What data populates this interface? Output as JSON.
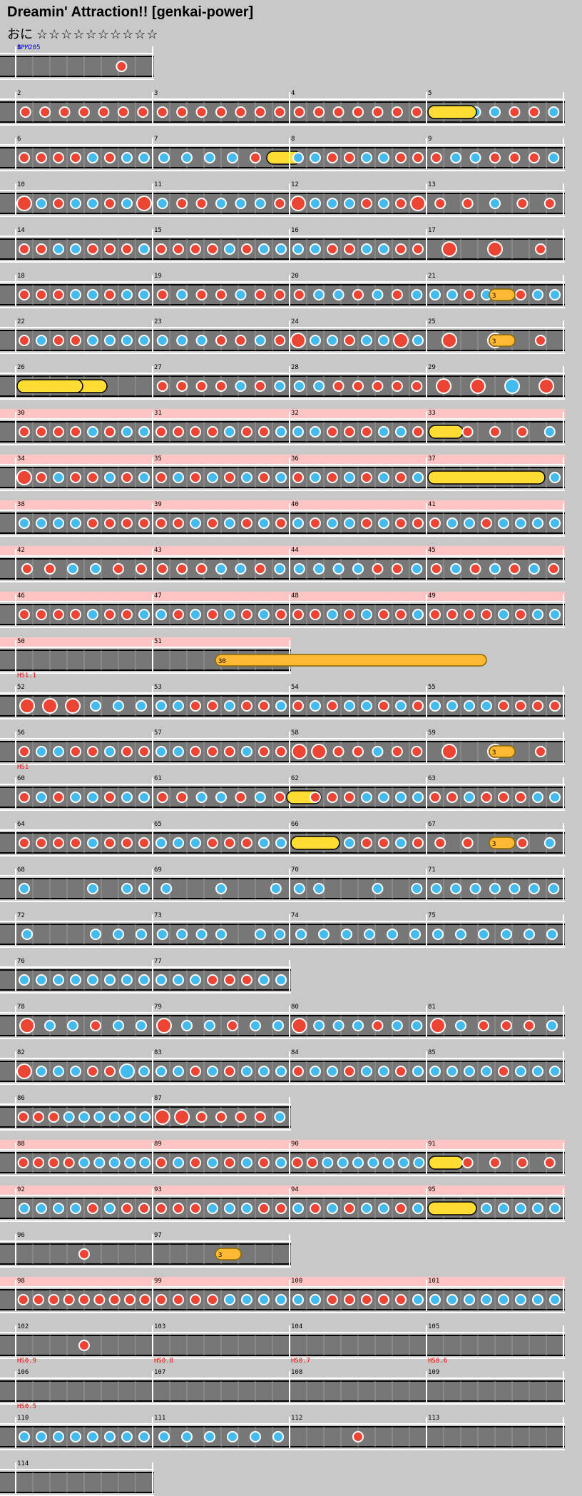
{
  "title": "Dreamin' Attraction!! [genkai-power]",
  "course": {
    "label": "おに",
    "stars": "☆☆☆☆☆☆☆☆☆☆"
  },
  "bpm_label": "BPM205",
  "colors": {
    "don": "#ee4433",
    "ka": "#44bbee",
    "roll": "#ffdd33",
    "balloon": "#ffb833",
    "gogo": "#ffc4c4",
    "lane": "#777777",
    "speed": "#ee0000",
    "bpm": "#0000ee"
  },
  "rows": [
    {
      "measures": [
        "1"
      ],
      "patterns": [
        "--------d--"
      ]
    },
    {
      "measures": [
        "2",
        "3",
        "4",
        "5"
      ],
      "patterns": [
        "ddddddd",
        "ddddddd",
        "ddddddd",
        "ddkkddk"
      ]
    },
    {
      "measures": [
        "6",
        "7",
        "8",
        "9"
      ],
      "patterns": [
        "ddddkdkk",
        "kkkkdr",
        "kkddkkdd",
        "dkkdddk"
      ]
    },
    {
      "measures": [
        "10",
        "11",
        "12",
        "13"
      ],
      "patterns": [
        "DkdkkdkD",
        "kddkkkd",
        "DkkkdkdD",
        "ddkdd"
      ]
    },
    {
      "measures": [
        "14",
        "15",
        "16",
        "17"
      ],
      "patterns": [
        "ddkkdddk",
        "ddddkdkk",
        "kkddkkdd",
        "DDd"
      ]
    },
    {
      "measures": [
        "18",
        "19",
        "20",
        "21"
      ],
      "patterns": [
        "dddkkdkk",
        "dkddkdd",
        "dkkdkdk",
        "kkdkddkk"
      ]
    },
    {
      "measures": [
        "22",
        "23",
        "24",
        "25"
      ],
      "patterns": [
        "dkddkkkk",
        "kkkddkd",
        "DkkdkkDk",
        "DDd"
      ]
    },
    {
      "measures": [
        "26",
        "27",
        "28",
        "29"
      ],
      "patterns": [
        "r",
        "ddddkdk",
        "kkddddd",
        "DDKD"
      ]
    },
    {
      "measures": [
        "30",
        "31",
        "32",
        "33"
      ],
      "patterns": [
        "ddddkdkk",
        "ddddkddk",
        "kkdddkkd",
        "rdddk"
      ]
    },
    {
      "measures": [
        "34",
        "35",
        "36",
        "37"
      ],
      "patterns": [
        "Ddkddkdk",
        "dkdkdkdk",
        "dkdkdkdk",
        "ddddkddk"
      ]
    },
    {
      "measures": [
        "38",
        "39",
        "40",
        "41"
      ],
      "patterns": [
        "kkkkdddd",
        "ddkdkdkd",
        "kdkkdkdd",
        "dkkdkkkk"
      ]
    },
    {
      "measures": [
        "42",
        "43",
        "44",
        "45"
      ],
      "patterns": [
        "ddkkdd",
        "dddkkdk",
        "kkkkddk",
        "dkdkdkd"
      ]
    },
    {
      "measures": [
        "46",
        "47",
        "48",
        "49"
      ],
      "patterns": [
        "ddddkddk",
        "kdkdkdkd",
        "ddkdkddk",
        "ddddkdkk"
      ]
    },
    {
      "measures": [
        "50",
        "51"
      ],
      "patterns": [
        "",
        ""
      ]
    },
    {
      "measures": [
        "52",
        "53",
        "54",
        "55"
      ],
      "patterns": [
        "DDDkkk",
        "kkddkddk",
        "dkdkkdkd",
        "kkkkdddd"
      ]
    },
    {
      "measures": [
        "56",
        "57",
        "58",
        "59"
      ],
      "patterns": [
        "dkkddkdd",
        "kkdddkdd",
        "DDddkdd",
        "DDd"
      ]
    },
    {
      "measures": [
        "60",
        "61",
        "62",
        "63"
      ],
      "patterns": [
        "dkdkkdkk",
        "ddkkdkd",
        "rdddkkkk",
        "ddkdddkk"
      ]
    },
    {
      "measures": [
        "64",
        "65",
        "66",
        "67"
      ],
      "patterns": [
        "ddddkddd",
        "kkkdddkk",
        "kdkkddkd",
        "ddddk"
      ]
    },
    {
      "measures": [
        "68",
        "69",
        "70",
        "71"
      ],
      "patterns": [
        "k---k-kk",
        "k-k-k",
        "kk--k-k",
        "kkkkkkk"
      ]
    },
    {
      "measures": [
        "72",
        "73",
        "74",
        "75"
      ],
      "patterns": [
        "k--kkk",
        "kkkk-kk",
        "kkkkkk",
        "kkkkkk"
      ]
    },
    {
      "measures": [
        "76",
        "77"
      ],
      "patterns": [
        "kkkkkkkk",
        "kkkdddkk"
      ]
    },
    {
      "measures": [
        "78",
        "79",
        "80",
        "81"
      ],
      "patterns": [
        "Dkkdkk",
        "Dkkdkk",
        "Dkkkdkk",
        "Dkdddk"
      ]
    },
    {
      "measures": [
        "82",
        "83",
        "84",
        "85"
      ],
      "patterns": [
        "DkkkddKk",
        "kkdkdkkk",
        "dkkdkkdk",
        "kkkkdkkk"
      ]
    },
    {
      "measures": [
        "86",
        "87"
      ],
      "patterns": [
        "dddkkkkkk",
        "DDddddk"
      ]
    },
    {
      "measures": [
        "88",
        "89",
        "90",
        "91"
      ],
      "patterns": [
        "ddddkkkkk",
        "dkdkdkdk",
        "ddkkkkkkk",
        "rdddd"
      ]
    },
    {
      "measures": [
        "92",
        "93",
        "94",
        "95"
      ],
      "patterns": [
        "kkkkdkdd",
        "dddkkkdd",
        "kdkdkkdk",
        "dkkkkkkk"
      ]
    },
    {
      "measures": [
        "96",
        "97"
      ],
      "patterns": [
        "d",
        ""
      ]
    },
    {
      "measures": [
        "98",
        "99",
        "100",
        "101"
      ],
      "patterns": [
        "ddddddddd",
        "ddddkkkk",
        "kkdddddk",
        "kkkkkkkk"
      ]
    },
    {
      "measures": [
        "102",
        "103",
        "104",
        "105"
      ],
      "patterns": [
        "d",
        "",
        "",
        ""
      ]
    },
    {
      "measures": [
        "106",
        "107",
        "108",
        "109"
      ],
      "patterns": [
        "",
        "",
        "",
        ""
      ]
    },
    {
      "measures": [
        "110",
        "111",
        "112",
        "113"
      ],
      "patterns": [
        "kkkkkkkk",
        "kkkkkk",
        "d",
        ""
      ]
    },
    {
      "measures": [
        "114"
      ],
      "patterns": [
        ""
      ]
    }
  ],
  "speed_labels": [
    "HS1.1",
    "HS1",
    "HS0.9",
    "HS0.8",
    "HS0.7",
    "HS0.6",
    "HS0.5"
  ],
  "balloon_counts": [
    "3",
    "3",
    "3",
    "30",
    "3",
    "3",
    "3"
  ]
}
